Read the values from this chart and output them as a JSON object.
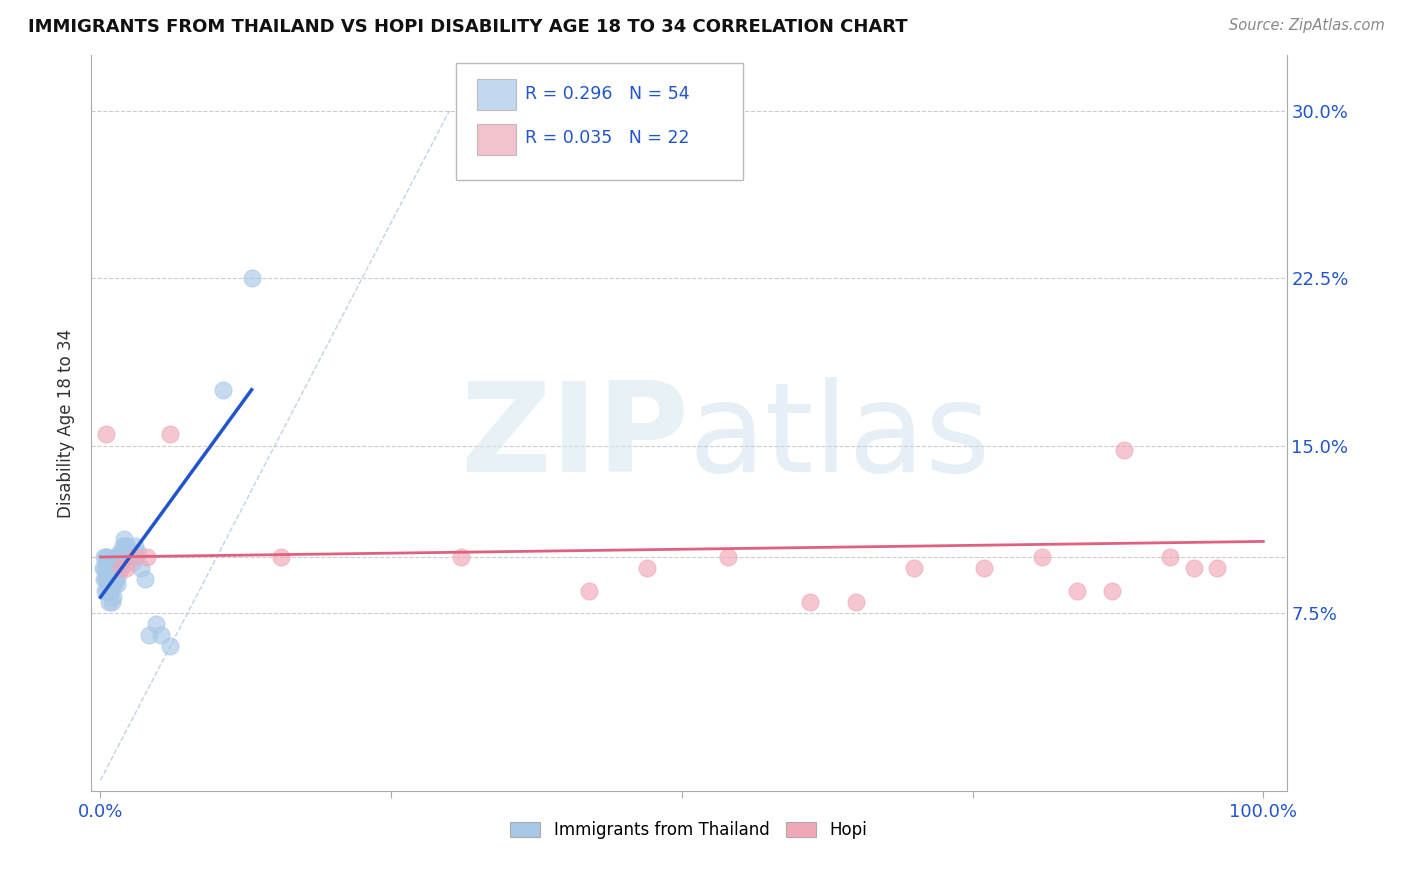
{
  "title": "IMMIGRANTS FROM THAILAND VS HOPI DISABILITY AGE 18 TO 34 CORRELATION CHART",
  "source_text": "Source: ZipAtlas.com",
  "ylabel": "Disability Age 18 to 34",
  "watermark_zip": "ZIP",
  "watermark_atlas": "atlas",
  "legend_blue_r": "R = 0.296",
  "legend_blue_n": "N = 54",
  "legend_pink_r": "R = 0.035",
  "legend_pink_n": "N = 22",
  "legend_label_blue": "Immigrants from Thailand",
  "legend_label_pink": "Hopi",
  "blue_color": "#a8c8e8",
  "pink_color": "#f0a8b8",
  "trend_blue_color": "#2255cc",
  "trend_pink_color": "#e06080",
  "ref_line_color": "#b0c8e0",
  "text_blue_color": "#2255cc",
  "text_color": "#333333",
  "grid_color": "#cccccc",
  "blue_scatter_x": [
    0.002,
    0.003,
    0.003,
    0.004,
    0.004,
    0.005,
    0.005,
    0.005,
    0.006,
    0.006,
    0.006,
    0.007,
    0.007,
    0.007,
    0.008,
    0.008,
    0.008,
    0.009,
    0.009,
    0.009,
    0.01,
    0.01,
    0.01,
    0.011,
    0.011,
    0.012,
    0.012,
    0.013,
    0.013,
    0.014,
    0.014,
    0.015,
    0.015,
    0.016,
    0.016,
    0.017,
    0.018,
    0.019,
    0.02,
    0.021,
    0.022,
    0.023,
    0.025,
    0.028,
    0.03,
    0.032,
    0.035,
    0.038,
    0.042,
    0.048,
    0.052,
    0.06,
    0.105,
    0.13
  ],
  "blue_scatter_y": [
    0.095,
    0.09,
    0.1,
    0.085,
    0.095,
    0.09,
    0.095,
    0.1,
    0.085,
    0.09,
    0.1,
    0.08,
    0.09,
    0.095,
    0.085,
    0.09,
    0.095,
    0.085,
    0.09,
    0.095,
    0.08,
    0.088,
    0.095,
    0.082,
    0.092,
    0.088,
    0.095,
    0.09,
    0.1,
    0.088,
    0.095,
    0.092,
    0.1,
    0.095,
    0.102,
    0.098,
    0.1,
    0.105,
    0.108,
    0.105,
    0.1,
    0.105,
    0.1,
    0.098,
    0.105,
    0.102,
    0.095,
    0.09,
    0.065,
    0.07,
    0.065,
    0.06,
    0.175,
    0.225
  ],
  "pink_scatter_x": [
    0.005,
    0.018,
    0.022,
    0.03,
    0.04,
    0.06,
    0.155,
    0.31,
    0.42,
    0.47,
    0.54,
    0.61,
    0.65,
    0.7,
    0.76,
    0.81,
    0.84,
    0.87,
    0.88,
    0.92,
    0.94,
    0.96
  ],
  "pink_scatter_y": [
    0.155,
    0.095,
    0.095,
    0.1,
    0.1,
    0.155,
    0.1,
    0.1,
    0.085,
    0.095,
    0.1,
    0.08,
    0.08,
    0.095,
    0.095,
    0.1,
    0.085,
    0.085,
    0.148,
    0.1,
    0.095,
    0.095
  ],
  "blue_trend_x": [
    0.0,
    0.13
  ],
  "blue_trend_y": [
    0.082,
    0.175
  ],
  "pink_trend_x": [
    0.0,
    1.0
  ],
  "pink_trend_y": [
    0.1,
    0.107
  ],
  "ref_line_x": [
    0.0,
    0.3
  ],
  "ref_line_y": [
    0.0,
    0.3
  ],
  "ylim": [
    -0.005,
    0.325
  ],
  "xlim": [
    -0.008,
    1.02
  ],
  "yticks": [
    0.075,
    0.1,
    0.15,
    0.225,
    0.3
  ],
  "ytick_labels_right": [
    "7.5%",
    "",
    "15.0%",
    "22.5%",
    "30.0%"
  ],
  "xticks": [
    0.0,
    0.25,
    0.5,
    0.75,
    1.0
  ],
  "xtick_labels": [
    "0.0%",
    "",
    "",
    "",
    "100.0%"
  ]
}
